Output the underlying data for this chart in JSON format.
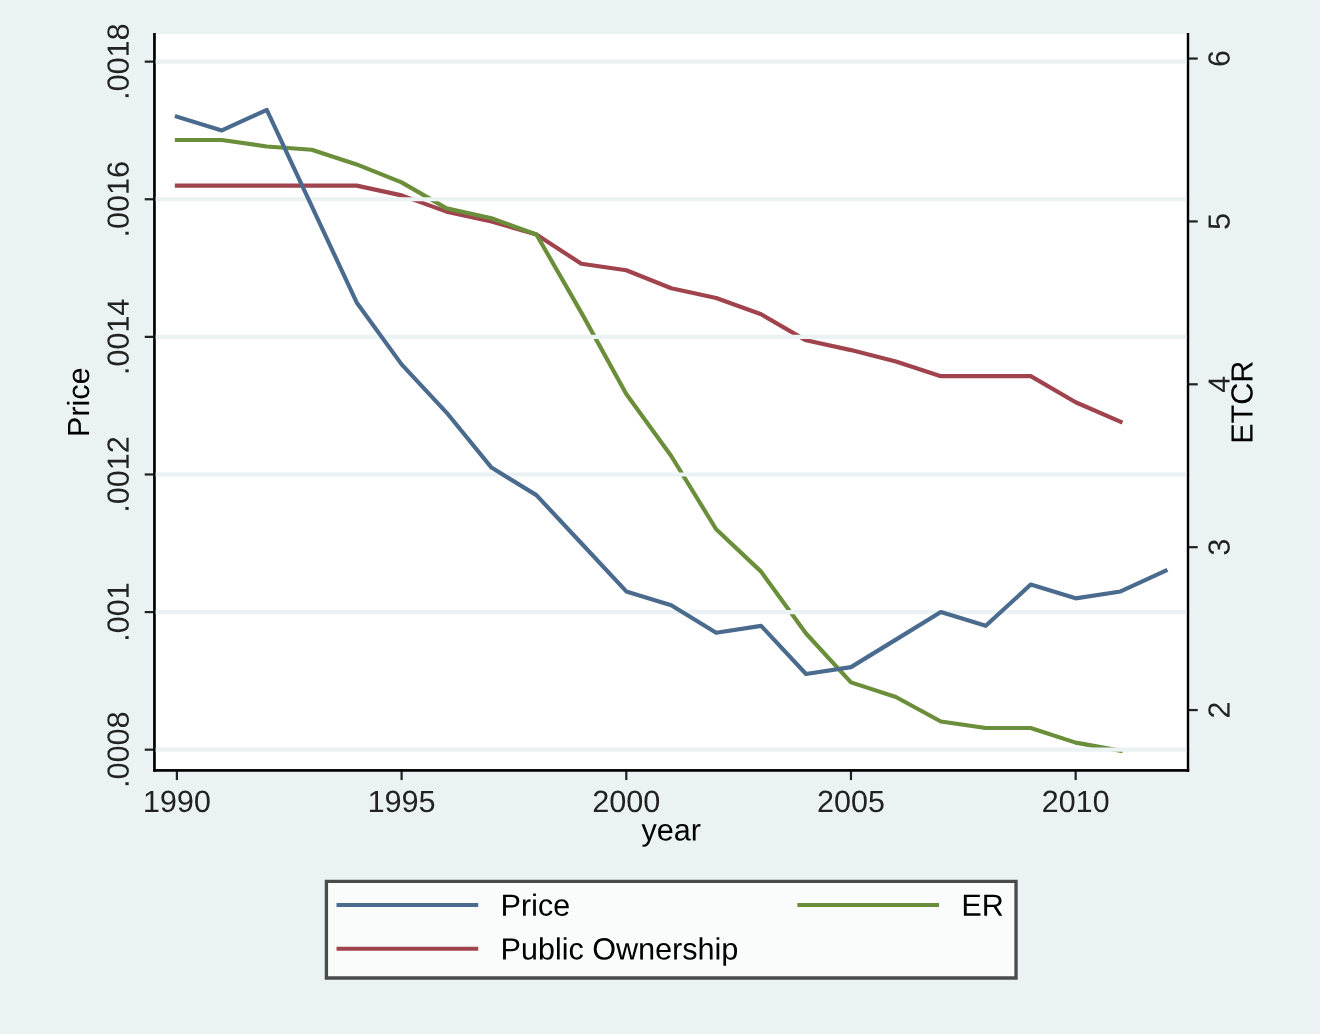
{
  "chart_data": {
    "type": "line",
    "xlabel": "year",
    "ylabel": "Price",
    "y2label": "ETCR",
    "x": [
      1990,
      1991,
      1992,
      1993,
      1994,
      1995,
      1996,
      1997,
      1998,
      1999,
      2000,
      2001,
      2002,
      2003,
      2004,
      2005,
      2006,
      2007,
      2008,
      2009,
      2010,
      2011,
      2012
    ],
    "xlim": [
      1989.5,
      2012.5
    ],
    "xticks": [
      1990,
      1995,
      2000,
      2005,
      2010
    ],
    "ylim": [
      0.00077,
      0.00184
    ],
    "yticks": [
      {
        "value": 0.0008,
        "label": ".0008"
      },
      {
        "value": 0.001,
        "label": ".001"
      },
      {
        "value": 0.0012,
        "label": ".0012"
      },
      {
        "value": 0.0014,
        "label": ".0014"
      },
      {
        "value": 0.0016,
        "label": ".0016"
      },
      {
        "value": 0.0018,
        "label": ".0018"
      }
    ],
    "y2lim": [
      1.63,
      6.15
    ],
    "y2ticks": [
      2,
      3,
      4,
      5,
      6
    ],
    "grid": "y",
    "legend": "bottom",
    "series": [
      {
        "name": "Price",
        "color": "#4a6a8e",
        "values": [
          0.00172,
          0.0017,
          0.00173,
          0.00159,
          0.00145,
          0.00136,
          0.00129,
          0.00121,
          0.00117,
          0.0011,
          0.00103,
          0.00101,
          0.00097,
          0.00098,
          0.00091,
          0.00092,
          0.00096,
          0.001,
          0.00098,
          0.00104,
          0.00102,
          0.00103,
          0.00106
        ]
      },
      {
        "name": "Public Ownership",
        "color": "#a0434d",
        "axis": "y2",
        "values": [
          5.22,
          5.22,
          5.22,
          5.22,
          5.22,
          5.16,
          5.06,
          5.0,
          4.92,
          4.74,
          4.7,
          4.59,
          4.53,
          4.43,
          4.27,
          4.21,
          4.14,
          4.05,
          4.05,
          4.05,
          3.89,
          3.77,
          null
        ]
      },
      {
        "name": "ER",
        "color": "#6b8e3a",
        "axis": "y2",
        "values": [
          5.5,
          5.5,
          5.46,
          5.44,
          5.35,
          5.24,
          5.08,
          5.02,
          4.92,
          4.44,
          3.94,
          3.56,
          3.11,
          2.85,
          2.47,
          2.17,
          2.08,
          1.93,
          1.89,
          1.89,
          1.8,
          1.75,
          null
        ]
      }
    ]
  }
}
